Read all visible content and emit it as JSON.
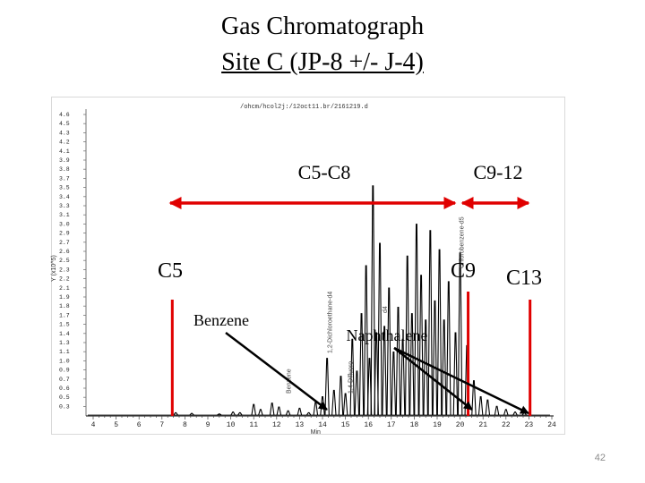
{
  "slide": {
    "title": "Gas Chromatograph",
    "subtitle": "Site C (JP-8 +/- J-4)",
    "page_number": "42"
  },
  "chart_data": {
    "type": "line",
    "header_text": "/ohcm/hcol2j:/12oct11.br/2161219.d",
    "ylabel": "Y (x10^5)",
    "xlabel": "Min",
    "xlim": [
      3.5,
      24
    ],
    "ylim": [
      0,
      4.8
    ],
    "x_ticks": [
      "4",
      "5",
      "6",
      "7",
      "8",
      "9",
      "10",
      "11",
      "12",
      "13",
      "14",
      "15",
      "16",
      "17",
      "18",
      "19",
      "20",
      "21",
      "22",
      "23",
      "24"
    ],
    "y_ticks": [
      "4.6",
      "4.5",
      "4.3",
      "4.2",
      "4.1",
      "3.9",
      "3.8",
      "3.7",
      "3.5",
      "3.4",
      "3.3",
      "3.1",
      "3.0",
      "2.9",
      "2.7",
      "2.6",
      "2.5",
      "2.3",
      "2.2",
      "2.1",
      "1.9",
      "1.8",
      "1.7",
      "1.5",
      "1.4",
      "1.3",
      "1.1",
      "1.0",
      "0.9",
      "0.7",
      "0.6",
      "0.5",
      "0.3"
    ],
    "peaks": [
      {
        "x": 7.6,
        "y": 0.05
      },
      {
        "x": 8.3,
        "y": 0.04
      },
      {
        "x": 9.5,
        "y": 0.03
      },
      {
        "x": 10.1,
        "y": 0.06
      },
      {
        "x": 10.4,
        "y": 0.05
      },
      {
        "x": 11.0,
        "y": 0.18
      },
      {
        "x": 11.3,
        "y": 0.1
      },
      {
        "x": 11.8,
        "y": 0.2
      },
      {
        "x": 12.1,
        "y": 0.14
      },
      {
        "x": 12.5,
        "y": 0.08
      },
      {
        "x": 13.0,
        "y": 0.12
      },
      {
        "x": 13.4,
        "y": 0.05
      },
      {
        "x": 13.7,
        "y": 0.22
      },
      {
        "x": 14.0,
        "y": 0.3
      },
      {
        "x": 14.2,
        "y": 0.9
      },
      {
        "x": 14.5,
        "y": 0.4
      },
      {
        "x": 14.8,
        "y": 0.62
      },
      {
        "x": 15.0,
        "y": 0.35
      },
      {
        "x": 15.3,
        "y": 1.2
      },
      {
        "x": 15.5,
        "y": 0.7
      },
      {
        "x": 15.7,
        "y": 1.6
      },
      {
        "x": 15.9,
        "y": 2.35
      },
      {
        "x": 16.05,
        "y": 0.9
      },
      {
        "x": 16.2,
        "y": 3.6
      },
      {
        "x": 16.35,
        "y": 1.3
      },
      {
        "x": 16.5,
        "y": 2.7
      },
      {
        "x": 16.7,
        "y": 1.4
      },
      {
        "x": 16.9,
        "y": 2.0
      },
      {
        "x": 17.1,
        "y": 1.0
      },
      {
        "x": 17.3,
        "y": 1.7
      },
      {
        "x": 17.5,
        "y": 1.2
      },
      {
        "x": 17.7,
        "y": 2.5
      },
      {
        "x": 17.9,
        "y": 1.6
      },
      {
        "x": 18.1,
        "y": 3.0
      },
      {
        "x": 18.3,
        "y": 2.2
      },
      {
        "x": 18.5,
        "y": 1.5
      },
      {
        "x": 18.7,
        "y": 2.9
      },
      {
        "x": 18.9,
        "y": 1.8
      },
      {
        "x": 19.1,
        "y": 2.6
      },
      {
        "x": 19.3,
        "y": 1.5
      },
      {
        "x": 19.5,
        "y": 2.1
      },
      {
        "x": 19.8,
        "y": 1.3
      },
      {
        "x": 20.0,
        "y": 2.55
      },
      {
        "x": 20.3,
        "y": 1.1
      },
      {
        "x": 20.6,
        "y": 0.55
      },
      {
        "x": 20.9,
        "y": 0.3
      },
      {
        "x": 21.2,
        "y": 0.25
      },
      {
        "x": 21.6,
        "y": 0.15
      },
      {
        "x": 22.0,
        "y": 0.1
      },
      {
        "x": 22.4,
        "y": 0.06
      },
      {
        "x": 22.8,
        "y": 0.05
      }
    ],
    "markers": [
      {
        "label": "C5",
        "x": 7.45
      },
      {
        "label": "C9",
        "x": 20.35
      },
      {
        "label": "C13",
        "x": 23.05
      }
    ],
    "ranges": [
      {
        "label": "C5-C8",
        "from": 7.0,
        "to": 20.0
      },
      {
        "label": "C9-12",
        "from": 20.6,
        "to": 23.0
      }
    ],
    "annotations": [
      {
        "label": "Benzene",
        "target_x": 14.2
      },
      {
        "label": "Naphthalene",
        "target_x": 20.5
      },
      {
        "label": "Naphthalene",
        "target_x": 22.8
      }
    ],
    "peak_labels": [
      {
        "text": "Benzene",
        "x": 12.8
      },
      {
        "text": "1,2-Dichloroethane-d4",
        "x": 14.6
      },
      {
        "text": "1,4-Difluoro",
        "x": 15.5
      },
      {
        "text": "Chlorobenzene-d5",
        "x": 20.35
      },
      {
        "text": "d4",
        "x": 17.0
      }
    ],
    "colors": {
      "marker": "#e00000",
      "trace": "#000000",
      "axis": "#555555"
    }
  }
}
